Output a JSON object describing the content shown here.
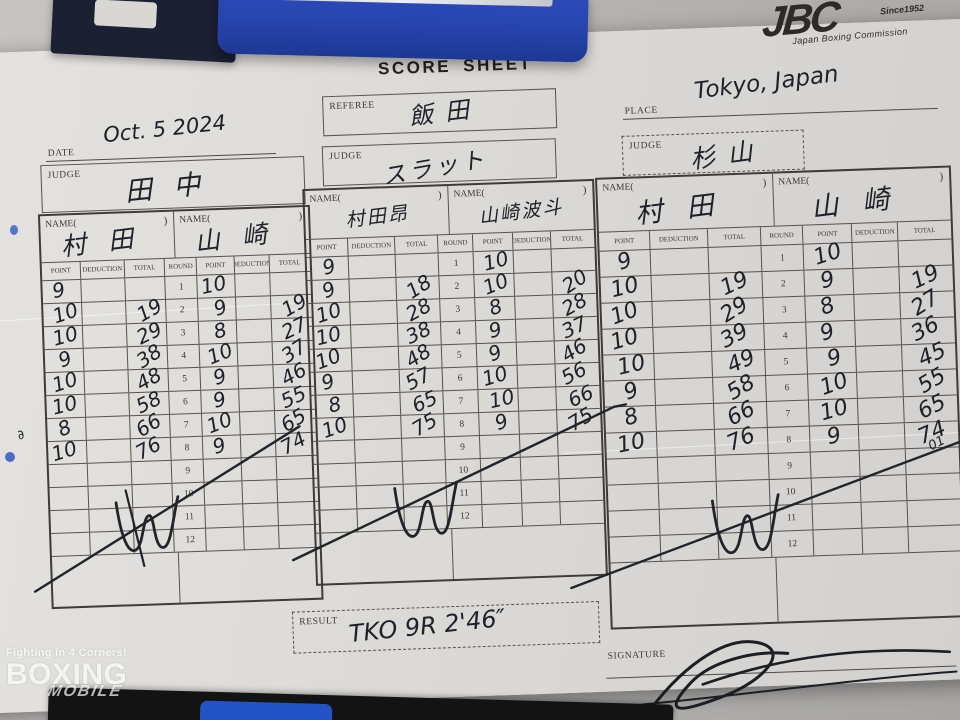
{
  "title": "SCORE SHEET",
  "logo": {
    "brand": "JBC",
    "since": "Since1952",
    "org": "Japan Boxing Commission"
  },
  "watermark": {
    "tagline": "Fighting in 4 Corners!",
    "brand": "BOXING",
    "sub": "MOBILE"
  },
  "header_fields": {
    "date": {
      "label": "DATE",
      "value": "Oct. 5 2024"
    },
    "referee": {
      "label": "REFEREE",
      "value": "飯田"
    },
    "judge_center": {
      "label": "JUDGE",
      "value": "スラット"
    },
    "place": {
      "label": "PLACE",
      "value": "Tokyo, Japan"
    },
    "judge_left": {
      "label": "JUDGE",
      "value": "田中"
    },
    "judge_right": {
      "label": "JUDGE",
      "value": "杉山"
    }
  },
  "score_table_labels": {
    "name_open": "NAME(",
    "name_close": ")",
    "point": "POINT",
    "deduction": "DEDUCTION",
    "total": "TOTAL",
    "round": "ROUND"
  },
  "tables": [
    {
      "judge": "田中",
      "boxer_a": "村田",
      "boxer_b": "山崎",
      "annotation": "",
      "rows": [
        {
          "round": "1",
          "a_point": "9",
          "a_ded": "",
          "a_total": "",
          "b_point": "10",
          "b_ded": "",
          "b_total": ""
        },
        {
          "round": "2",
          "a_point": "10",
          "a_ded": "",
          "a_total": "19",
          "b_point": "9",
          "b_ded": "",
          "b_total": "19"
        },
        {
          "round": "3",
          "a_point": "10",
          "a_ded": "",
          "a_total": "29",
          "b_point": "8",
          "b_ded": "",
          "b_total": "27"
        },
        {
          "round": "4",
          "a_point": "9",
          "a_ded": "",
          "a_total": "38",
          "b_point": "10",
          "b_ded": "",
          "b_total": "37"
        },
        {
          "round": "5",
          "a_point": "10",
          "a_ded": "",
          "a_total": "48",
          "b_point": "9",
          "b_ded": "",
          "b_total": "46"
        },
        {
          "round": "6",
          "a_point": "10",
          "a_ded": "",
          "a_total": "58",
          "b_point": "9",
          "b_ded": "",
          "b_total": "55"
        },
        {
          "round": "7",
          "a_point": "8",
          "a_ded": "",
          "a_total": "66",
          "b_point": "10",
          "b_ded": "",
          "b_total": "65"
        },
        {
          "round": "8",
          "a_point": "10",
          "a_ded": "",
          "a_total": "76",
          "b_point": "9",
          "b_ded": "",
          "b_total": "74"
        },
        {
          "round": "9",
          "a_point": "",
          "a_ded": "",
          "a_total": "",
          "b_point": "",
          "b_ded": "",
          "b_total": ""
        },
        {
          "round": "10",
          "a_point": "",
          "a_ded": "",
          "a_total": "",
          "b_point": "",
          "b_ded": "",
          "b_total": ""
        },
        {
          "round": "11",
          "a_point": "",
          "a_ded": "",
          "a_total": "",
          "b_point": "",
          "b_ded": "",
          "b_total": ""
        },
        {
          "round": "12",
          "a_point": "",
          "a_ded": "",
          "a_total": "",
          "b_point": "",
          "b_ded": "",
          "b_total": ""
        }
      ]
    },
    {
      "judge": "スラット",
      "boxer_a": "村田昂",
      "boxer_b": "山崎波斗",
      "annotation": "",
      "rows": [
        {
          "round": "1",
          "a_point": "9",
          "a_ded": "",
          "a_total": "",
          "b_point": "10",
          "b_ded": "",
          "b_total": ""
        },
        {
          "round": "2",
          "a_point": "9",
          "a_ded": "",
          "a_total": "18",
          "b_point": "10",
          "b_ded": "",
          "b_total": "20"
        },
        {
          "round": "3",
          "a_point": "10",
          "a_ded": "",
          "a_total": "28",
          "b_point": "8",
          "b_ded": "",
          "b_total": "28"
        },
        {
          "round": "4",
          "a_point": "10",
          "a_ded": "",
          "a_total": "38",
          "b_point": "9",
          "b_ded": "",
          "b_total": "37"
        },
        {
          "round": "5",
          "a_point": "10",
          "a_ded": "",
          "a_total": "48",
          "b_point": "9",
          "b_ded": "",
          "b_total": "46"
        },
        {
          "round": "6",
          "a_point": "9",
          "a_ded": "",
          "a_total": "57",
          "b_point": "10",
          "b_ded": "",
          "b_total": "56"
        },
        {
          "round": "7",
          "a_point": "8",
          "a_ded": "",
          "a_total": "65",
          "b_point": "10",
          "b_ded": "",
          "b_total": "66"
        },
        {
          "round": "8",
          "a_point": "10",
          "a_ded": "",
          "a_total": "75",
          "b_point": "9",
          "b_ded": "",
          "b_total": "75"
        },
        {
          "round": "9",
          "a_point": "",
          "a_ded": "",
          "a_total": "",
          "b_point": "",
          "b_ded": "",
          "b_total": ""
        },
        {
          "round": "10",
          "a_point": "",
          "a_ded": "",
          "a_total": "",
          "b_point": "",
          "b_ded": "",
          "b_total": ""
        },
        {
          "round": "11",
          "a_point": "",
          "a_ded": "",
          "a_total": "",
          "b_point": "",
          "b_ded": "",
          "b_total": ""
        },
        {
          "round": "12",
          "a_point": "",
          "a_ded": "",
          "a_total": "",
          "b_point": "",
          "b_ded": "",
          "b_total": ""
        }
      ]
    },
    {
      "judge": "杉山",
      "boxer_a": "村田",
      "boxer_b": "山崎",
      "annotation": "01",
      "rows": [
        {
          "round": "1",
          "a_point": "9",
          "a_ded": "",
          "a_total": "",
          "b_point": "10",
          "b_ded": "",
          "b_total": ""
        },
        {
          "round": "2",
          "a_point": "10",
          "a_ded": "",
          "a_total": "19",
          "b_point": "9",
          "b_ded": "",
          "b_total": "19"
        },
        {
          "round": "3",
          "a_point": "10",
          "a_ded": "",
          "a_total": "29",
          "b_point": "8",
          "b_ded": "",
          "b_total": "27"
        },
        {
          "round": "4",
          "a_point": "10",
          "a_ded": "",
          "a_total": "39",
          "b_point": "9",
          "b_ded": "",
          "b_total": "36"
        },
        {
          "round": "5",
          "a_point": "10",
          "a_ded": "",
          "a_total": "49",
          "b_point": "9",
          "b_ded": "",
          "b_total": "45"
        },
        {
          "round": "6",
          "a_point": "9",
          "a_ded": "",
          "a_total": "58",
          "b_point": "10",
          "b_ded": "",
          "b_total": "55"
        },
        {
          "round": "7",
          "a_point": "8",
          "a_ded": "",
          "a_total": "66",
          "b_point": "10",
          "b_ded": "",
          "b_total": "65"
        },
        {
          "round": "8",
          "a_point": "10",
          "a_ded": "",
          "a_total": "76",
          "b_point": "9",
          "b_ded": "",
          "b_total": "74"
        },
        {
          "round": "9",
          "a_point": "",
          "a_ded": "",
          "a_total": "",
          "b_point": "",
          "b_ded": "",
          "b_total": ""
        },
        {
          "round": "10",
          "a_point": "",
          "a_ded": "",
          "a_total": "",
          "b_point": "",
          "b_ded": "",
          "b_total": ""
        },
        {
          "round": "11",
          "a_point": "",
          "a_ded": "",
          "a_total": "",
          "b_point": "",
          "b_ded": "",
          "b_total": ""
        },
        {
          "round": "12",
          "a_point": "",
          "a_ded": "",
          "a_total": "",
          "b_point": "",
          "b_ded": "",
          "b_total": ""
        }
      ]
    }
  ],
  "result": {
    "label": "RESULT",
    "value": "TKO 9R 2'46″"
  },
  "signature": {
    "label": "SIGNATURE"
  }
}
